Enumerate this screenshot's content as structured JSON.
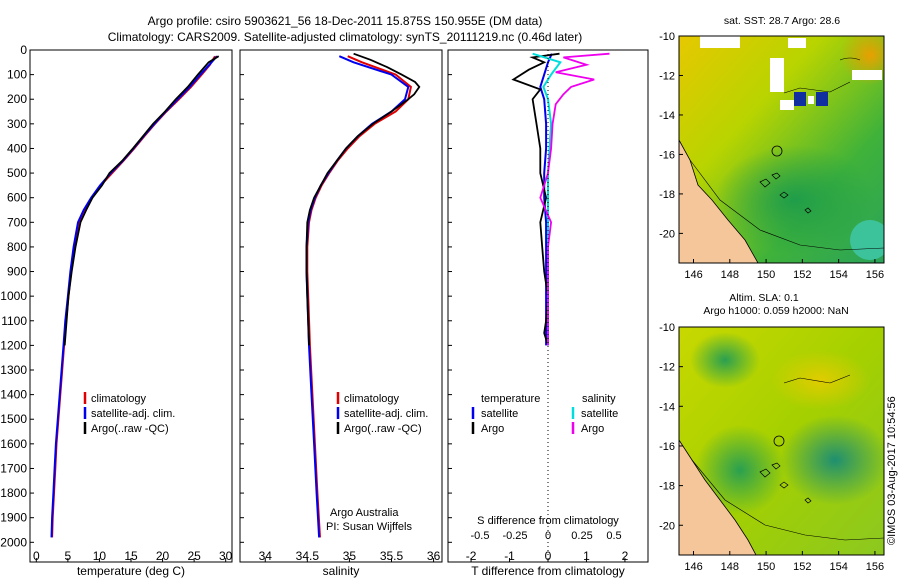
{
  "header": {
    "line1": "Argo profile: csiro 5903621_56 18-Dec-2011 15.875S 150.955E (DM data)",
    "line2": "Climatology: CARS2009. Satellite-adjusted climatology: synTS_20111219.nc (0.46d later)"
  },
  "colors": {
    "climatology": "#e00000",
    "satellite": "#0000ee",
    "argo": "#000000",
    "sal_sat": "#00dddd",
    "sal_argo": "#ee00ee",
    "land": "#f5c69a"
  },
  "depth_axis": {
    "ticks": [
      0,
      100,
      200,
      300,
      400,
      500,
      600,
      700,
      800,
      900,
      1000,
      1100,
      1200,
      1300,
      1400,
      1500,
      1600,
      1700,
      1800,
      1900,
      2000
    ],
    "range": [
      0,
      2080
    ]
  },
  "legend": {
    "climatology": "climatology",
    "satellite": "satellite-adj. clim.",
    "argo": "Argo(..raw -QC)"
  },
  "chart_data": [
    {
      "type": "line",
      "name": "temperature",
      "xlabel": "temperature (deg C)",
      "xlim": [
        -1,
        31
      ],
      "xticks": [
        0,
        5,
        10,
        15,
        20,
        25,
        30
      ],
      "series": [
        {
          "name": "climatology",
          "depth": [
            25,
            60,
            100,
            150,
            200,
            250,
            300,
            350,
            400,
            450,
            500,
            550,
            600,
            650,
            700,
            800,
            900,
            1000,
            1100,
            1200,
            1300,
            1400,
            1500,
            1600,
            1700,
            1800,
            1900,
            1980
          ],
          "values": [
            28.3,
            27.5,
            26.2,
            24.5,
            22.6,
            20.6,
            18.8,
            17.1,
            15.5,
            13.8,
            12.0,
            10.2,
            8.8,
            7.6,
            6.7,
            6.0,
            5.5,
            5.1,
            4.7,
            4.4,
            4.1,
            3.8,
            3.5,
            3.2,
            3.0,
            2.8,
            2.6,
            2.5
          ]
        },
        {
          "name": "satellite-adj. clim.",
          "depth": [
            25,
            60,
            100,
            150,
            200,
            250,
            300,
            350,
            400,
            450,
            500,
            550,
            600,
            650,
            700,
            800,
            900,
            1000,
            1100,
            1200,
            1300,
            1400,
            1500,
            1600,
            1700,
            1800,
            1900,
            1980
          ],
          "values": [
            28.6,
            27.4,
            26.0,
            24.3,
            22.4,
            20.5,
            18.7,
            17.0,
            15.4,
            13.7,
            11.8,
            10.1,
            8.7,
            7.5,
            6.6,
            5.9,
            5.4,
            5.0,
            4.6,
            4.3,
            4.0,
            3.7,
            3.4,
            3.1,
            2.9,
            2.7,
            2.5,
            2.4
          ]
        },
        {
          "name": "Argo(..raw -QC)",
          "depth": [
            25,
            50,
            100,
            150,
            200,
            250,
            300,
            350,
            400,
            450,
            500,
            550,
            600,
            650,
            700,
            800,
            900,
            1000,
            1100,
            1200
          ],
          "values": [
            28.9,
            27.3,
            25.6,
            24.0,
            22.1,
            20.4,
            18.5,
            16.9,
            15.3,
            13.6,
            11.6,
            10.4,
            8.9,
            7.9,
            7.0,
            6.2,
            5.6,
            5.1,
            4.8,
            4.5
          ]
        }
      ]
    },
    {
      "type": "line",
      "name": "salinity",
      "xlabel": "salinity",
      "xlim": [
        33.7,
        36.1
      ],
      "xticks": [
        34,
        34.5,
        35,
        35.5,
        36
      ],
      "annotation": [
        "Argo Australia",
        "PI: Susan Wijffels"
      ],
      "series": [
        {
          "name": "climatology",
          "depth": [
            25,
            50,
            100,
            150,
            200,
            250,
            300,
            350,
            400,
            450,
            500,
            550,
            600,
            650,
            700,
            800,
            900,
            1000,
            1200,
            1400,
            1600,
            1800,
            1980
          ],
          "values": [
            34.98,
            35.15,
            35.55,
            35.73,
            35.7,
            35.55,
            35.3,
            35.12,
            34.98,
            34.86,
            34.76,
            34.67,
            34.6,
            34.55,
            34.52,
            34.5,
            34.5,
            34.51,
            34.53,
            34.56,
            34.59,
            34.62,
            34.65
          ]
        },
        {
          "name": "satellite-adj. clim.",
          "depth": [
            25,
            50,
            100,
            150,
            200,
            250,
            300,
            350,
            400,
            450,
            500,
            550,
            600,
            650,
            700,
            800,
            900,
            1000,
            1200,
            1400,
            1600,
            1800,
            1980
          ],
          "values": [
            34.88,
            35.05,
            35.5,
            35.7,
            35.66,
            35.5,
            35.27,
            35.1,
            34.96,
            34.85,
            34.75,
            34.66,
            34.59,
            34.54,
            34.51,
            34.49,
            34.49,
            34.5,
            34.52,
            34.55,
            34.58,
            34.61,
            34.64
          ]
        },
        {
          "name": "Argo(..raw -QC)",
          "depth": [
            15,
            40,
            70,
            100,
            130,
            150,
            180,
            200,
            250,
            300,
            350,
            400,
            450,
            500,
            550,
            600,
            650,
            700,
            800,
            900,
            1000,
            1100,
            1200
          ],
          "values": [
            35.05,
            35.25,
            35.45,
            35.62,
            35.78,
            35.83,
            35.77,
            35.7,
            35.5,
            35.28,
            35.1,
            34.96,
            34.85,
            34.74,
            34.66,
            34.58,
            34.53,
            34.5,
            34.49,
            34.49,
            34.5,
            34.51,
            34.52
          ]
        }
      ]
    },
    {
      "type": "line",
      "name": "difference",
      "xlabel": "T difference from climatology",
      "xlim": [
        -2.6,
        2.6
      ],
      "xticks": [
        -2,
        -1,
        0,
        1,
        2
      ],
      "top_axis_label": "S difference from climatology",
      "top_ticks": [
        "-0.5",
        "-0.25",
        "0",
        "0.25",
        "0.5"
      ],
      "legend": {
        "temperature": "temperature",
        "salinity": "salinity",
        "satellite": "satellite",
        "argo": "Argo"
      },
      "series": [
        {
          "name": "temperature satellite",
          "depth": [
            15,
            50,
            100,
            150,
            200,
            300,
            400,
            500,
            600,
            700,
            800,
            1000,
            1200
          ],
          "values": [
            0.1,
            0.0,
            -0.1,
            -0.2,
            -0.1,
            -0.05,
            -0.05,
            -0.1,
            -0.1,
            -0.05,
            -0.05,
            -0.05,
            -0.05
          ]
        },
        {
          "name": "temperature Argo",
          "depth": [
            15,
            30,
            50,
            80,
            120,
            160,
            200,
            300,
            400,
            500,
            600,
            700,
            800,
            900,
            1000,
            1100,
            1150,
            1200
          ],
          "values": [
            0.3,
            -0.4,
            -0.1,
            -0.5,
            -0.9,
            -0.2,
            -0.4,
            -0.3,
            -0.2,
            -0.2,
            -0.05,
            -0.2,
            -0.15,
            -0.1,
            0.0,
            -0.05,
            -0.1,
            0.0
          ]
        },
        {
          "name": "salinity satellite",
          "depth": [
            15,
            50,
            100,
            150,
            200,
            300,
            400,
            500,
            600,
            800,
            1000,
            1200
          ],
          "values": [
            -0.1,
            0.08,
            0.02,
            -0.03,
            0.0,
            0.02,
            0.01,
            0.0,
            0.0,
            0.0,
            0.0,
            0.0
          ]
        },
        {
          "name": "salinity Argo",
          "depth": [
            15,
            30,
            60,
            90,
            120,
            150,
            180,
            220,
            300,
            400,
            500,
            600,
            700,
            800,
            900,
            1000,
            1100,
            1200
          ],
          "values": [
            0.4,
            0.1,
            0.25,
            0.05,
            0.3,
            0.15,
            0.1,
            0.05,
            0.03,
            0.02,
            0.0,
            -0.05,
            0.02,
            0.0,
            0.0,
            0.0,
            0.0,
            0.0
          ]
        }
      ]
    }
  ],
  "maps": [
    {
      "title": "sat. SST: 28.7 Argo: 28.6",
      "subtitle": "",
      "lat_ticks": [
        "-10",
        "-12",
        "-14",
        "-16",
        "-18",
        "-20"
      ],
      "lon_ticks": [
        "146",
        "148",
        "150",
        "152",
        "154",
        "156"
      ]
    },
    {
      "title": "Altim. SLA: 0.1",
      "subtitle": "Argo h1000: 0.059 h2000: NaN",
      "lat_ticks": [
        "-10",
        "-12",
        "-14",
        "-16",
        "-18",
        "-20"
      ],
      "lon_ticks": [
        "146",
        "148",
        "150",
        "152",
        "154",
        "156"
      ]
    }
  ],
  "stamp": "©IMOS 03-Aug-2017 10:54:56"
}
